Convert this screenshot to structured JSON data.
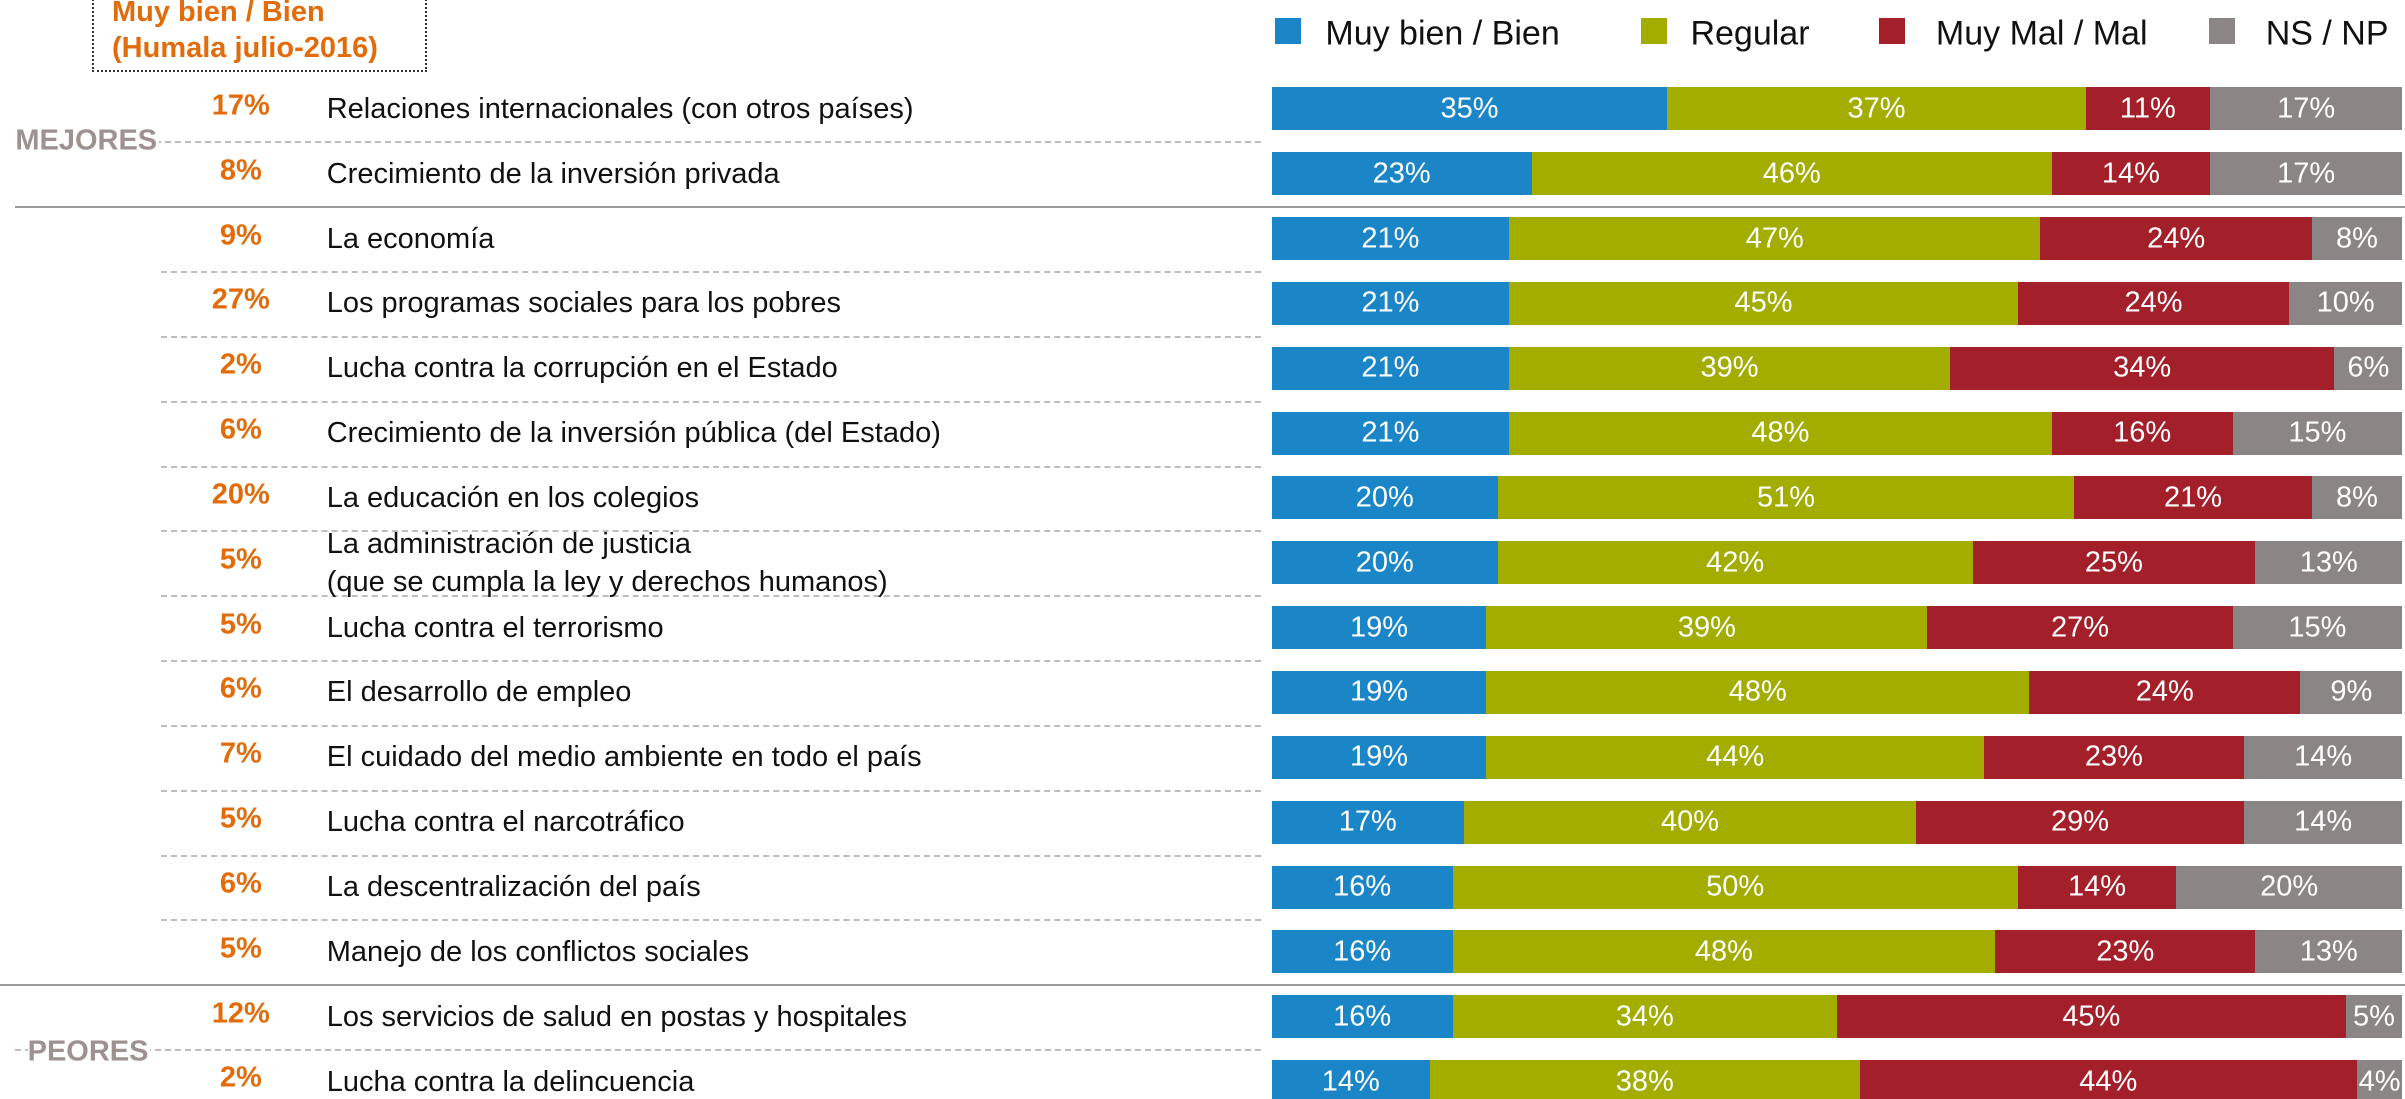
{
  "chart_data": {
    "type": "bar",
    "orientation": "horizontal",
    "stacked": true,
    "xlim": [
      0,
      100
    ],
    "reference": {
      "title": "Muy bien / Bien\n(Humala julio-2016)",
      "color": "#e36c0a",
      "values": [
        17,
        8,
        9,
        27,
        2,
        6,
        20,
        5,
        5,
        6,
        7,
        5,
        6,
        5,
        12,
        2
      ],
      "value_labels": [
        "17%",
        "8%",
        "9%",
        "27%",
        "2%",
        "6%",
        "20%",
        "5%",
        "5%",
        "6%",
        "7%",
        "5%",
        "6%",
        "5%",
        "12%",
        "2%"
      ]
    },
    "group_labels": {
      "top": "MEJORES",
      "bottom": "PEORES"
    },
    "categories": [
      "Relaciones internacionales (con otros países)",
      "Crecimiento de la inversión privada",
      "La economía",
      "Los programas sociales para los pobres",
      "Lucha contra la corrupción en el Estado",
      "Crecimiento de la inversión pública (del Estado)",
      "La educación en los colegios",
      "La administración de justicia\n(que se cumpla la ley y derechos humanos)",
      "Lucha contra el terrorismo",
      "El desarrollo de empleo",
      "El cuidado del medio ambiente en todo el país",
      "Lucha contra el narcotráfico",
      "La descentralización del país",
      "Manejo de los conflictos sociales",
      "Los servicios de salud en postas y hospitales",
      "Lucha contra la delincuencia"
    ],
    "series": [
      {
        "name": "Muy bien / Bien",
        "color": "#1a86c8",
        "values": [
          35,
          23,
          21,
          21,
          21,
          21,
          20,
          20,
          19,
          19,
          19,
          17,
          16,
          16,
          16,
          14
        ],
        "value_labels": [
          "35%",
          "23%",
          "21%",
          "21%",
          "21%",
          "21%",
          "20%",
          "20%",
          "19%",
          "19%",
          "19%",
          "17%",
          "16%",
          "16%",
          "16%",
          "14%"
        ]
      },
      {
        "name": "Regular",
        "color": "#a2ad00",
        "values": [
          37,
          46,
          47,
          45,
          39,
          48,
          51,
          42,
          39,
          48,
          44,
          40,
          50,
          48,
          34,
          38
        ],
        "value_labels": [
          "37%",
          "46%",
          "47%",
          "45%",
          "39%",
          "48%",
          "51%",
          "42%",
          "39%",
          "48%",
          "44%",
          "40%",
          "50%",
          "48%",
          "34%",
          "38%"
        ]
      },
      {
        "name": "Muy Mal / Mal",
        "color": "#a3202a",
        "values": [
          11,
          14,
          24,
          24,
          34,
          16,
          21,
          25,
          27,
          24,
          23,
          29,
          14,
          23,
          45,
          44
        ],
        "value_labels": [
          "11%",
          "14%",
          "24%",
          "24%",
          "34%",
          "16%",
          "21%",
          "25%",
          "27%",
          "24%",
          "23%",
          "29%",
          "14%",
          "23%",
          "45%",
          "44%"
        ]
      },
      {
        "name": "NS / NP",
        "color": "#8c8585",
        "values": [
          17,
          17,
          8,
          10,
          6,
          15,
          8,
          13,
          15,
          9,
          14,
          14,
          20,
          13,
          5,
          4
        ],
        "value_labels": [
          "17%",
          "17%",
          "8%",
          "10%",
          "6%",
          "15%",
          "8%",
          "13%",
          "15%",
          "9%",
          "14%",
          "14%",
          "20%",
          "13%",
          "5%",
          "4%"
        ]
      }
    ]
  }
}
